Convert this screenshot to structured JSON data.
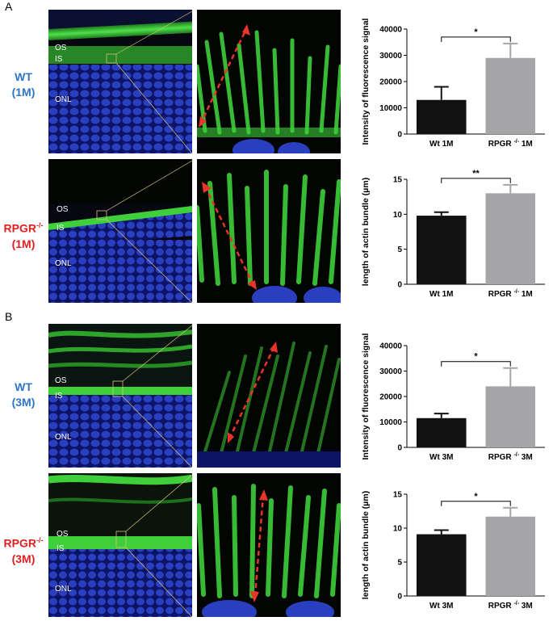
{
  "panel_letters": [
    "A",
    "B"
  ],
  "rows": [
    {
      "genotype": "WT",
      "age": "(1M)",
      "color": "#2e75c6"
    },
    {
      "genotype": "RPGR",
      "genotype_sup": "-/-",
      "age": "(1M)",
      "color": "#e02020"
    },
    {
      "genotype": "WT",
      "age": "(3M)",
      "color": "#2e75c6"
    },
    {
      "genotype": "RPGR",
      "genotype_sup": "-/-",
      "age": "(3M)",
      "color": "#e02020"
    }
  ],
  "layer_labels": {
    "os": "OS",
    "is": "IS",
    "onl": "ONL"
  },
  "colors": {
    "wt_bar": "#111111",
    "ko_bar": "#a6a6a8",
    "nuclei": "#2a3fc0",
    "actin": "#3ecf3a",
    "arrow": "#e8342a"
  },
  "chart_data": [
    {
      "type": "bar",
      "categories": [
        "Wt 1M",
        "RPGR -/- 1M"
      ],
      "values": [
        13000,
        29000
      ],
      "errors": [
        5000,
        5500
      ],
      "ylabel": "Intensity of fluorescence signal",
      "ylim": [
        0,
        40000
      ],
      "yticks": [
        "0",
        "10000",
        "20000",
        "30000",
        "40000"
      ],
      "significance": "*"
    },
    {
      "type": "bar",
      "categories": [
        "Wt 1M",
        "RPGR -/- 1M"
      ],
      "values": [
        9.8,
        13.0
      ],
      "errors": [
        0.5,
        1.2
      ],
      "ylabel": "length of actin bundle (µm)",
      "ylim": [
        0,
        15
      ],
      "yticks": [
        "0",
        "5",
        "10",
        "15"
      ],
      "significance": "**"
    },
    {
      "type": "bar",
      "categories": [
        "Wt 3M",
        "RPGR -/- 3M"
      ],
      "values": [
        11500,
        24000
      ],
      "errors": [
        1800,
        7200
      ],
      "ylabel": "Intensity of fluorescence signal",
      "ylim": [
        0,
        40000
      ],
      "yticks": [
        "0",
        "10000",
        "20000",
        "30000",
        "40000"
      ],
      "significance": "*"
    },
    {
      "type": "bar",
      "categories": [
        "Wt 3M",
        "RPGR -/- 3M"
      ],
      "values": [
        9.1,
        11.7
      ],
      "errors": [
        0.6,
        1.3
      ],
      "ylabel": "length of actin bundle (µm)",
      "ylim": [
        0,
        15
      ],
      "yticks": [
        "0",
        "5",
        "10",
        "15"
      ],
      "significance": "*"
    }
  ]
}
